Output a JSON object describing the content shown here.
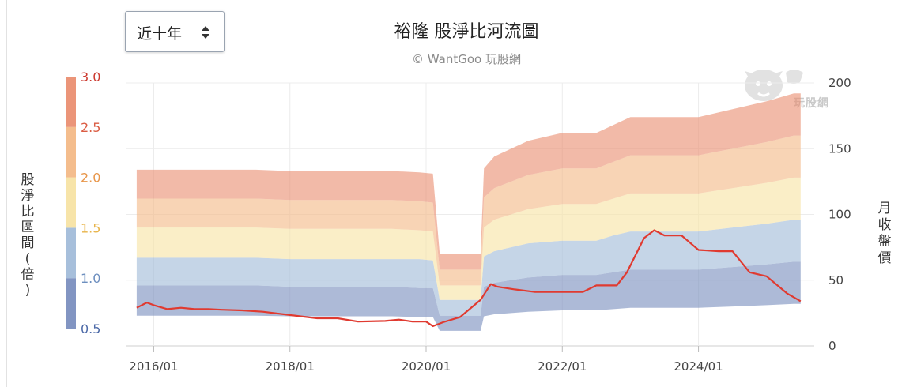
{
  "range_select": {
    "label": "近十年"
  },
  "title": "裕隆 股淨比河流圖",
  "credit": "© WantGoo 玩股網",
  "watermark": "玩股網",
  "y_left_title": "股淨比區間(倍)",
  "y_right_title": "月收盤價",
  "colors": {
    "band_0_5": "#7b8fbf",
    "band_1_0": "#a2bcd9",
    "band_1_5": "#f7e3a4",
    "band_2_0": "#f3b987",
    "band_2_5": "#ea8f72",
    "price_line": "#e03a30",
    "left_tick_text": "#cc3a30"
  },
  "chart_data": {
    "type": "area",
    "title": "裕隆 股淨比河流圖",
    "xlabel": "",
    "ylabel": "股淨比區間(倍)",
    "y2label": "月收盤價",
    "x_ticks": [
      "2016/01",
      "2018/01",
      "2020/01",
      "2022/01",
      "2024/01"
    ],
    "y_left_ticks": [
      "0.5",
      "1.0",
      "1.5",
      "2.0",
      "2.5",
      "3.0"
    ],
    "y_right_ticks": [
      "0",
      "50",
      "100",
      "150",
      "200"
    ],
    "ylim_right": [
      0,
      200
    ],
    "xlim": [
      2015.6,
      2025.7
    ],
    "x": [
      2015.75,
      2016.0,
      2016.5,
      2017.0,
      2017.5,
      2018.0,
      2018.5,
      2019.0,
      2019.5,
      2019.9,
      2020.1,
      2020.2,
      2020.5,
      2020.8,
      2020.85,
      2021.0,
      2021.5,
      2022.0,
      2022.3,
      2022.5,
      2022.75,
      2023.0,
      2023.5,
      2023.75,
      2024.0,
      2024.5,
      2025.0,
      2025.4,
      2025.5
    ],
    "series": [
      {
        "name": "0.5",
        "values": [
          23,
          23,
          23,
          23,
          23,
          22.5,
          22.5,
          22.5,
          22.5,
          22,
          22,
          11.5,
          11.5,
          11.5,
          22.5,
          24,
          26,
          27,
          27,
          27,
          28,
          29,
          29,
          29,
          29,
          30,
          31,
          32,
          32
        ]
      },
      {
        "name": "1.0",
        "values": [
          46,
          46,
          46,
          46,
          46,
          45,
          45,
          45,
          45,
          44,
          44,
          23,
          23,
          23,
          45,
          48,
          52,
          54,
          54,
          54,
          56,
          58,
          58,
          58,
          58,
          60,
          62,
          64,
          64
        ]
      },
      {
        "name": "1.5",
        "values": [
          67,
          67,
          67,
          67,
          67,
          66,
          66,
          66,
          66,
          66,
          65,
          35,
          35,
          35,
          68,
          72,
          78,
          80,
          80,
          80,
          84,
          87,
          87,
          87,
          87,
          90,
          93,
          96,
          96
        ]
      },
      {
        "name": "2.0",
        "values": [
          90,
          90,
          90,
          90,
          90,
          89,
          89,
          89,
          89,
          88,
          87,
          46,
          46,
          46,
          90,
          96,
          104,
          108,
          108,
          108,
          112,
          116,
          116,
          116,
          116,
          120,
          124,
          128,
          128
        ]
      },
      {
        "name": "2.5",
        "values": [
          112,
          112,
          112,
          112,
          112,
          111,
          111,
          111,
          111,
          110,
          109,
          58,
          58,
          58,
          113,
          120,
          130,
          135,
          135,
          135,
          140,
          145,
          145,
          145,
          145,
          150,
          155,
          160,
          160
        ]
      },
      {
        "name": "3.0",
        "values": [
          134,
          134,
          134,
          134,
          134,
          133,
          133,
          133,
          133,
          132,
          131,
          70,
          70,
          70,
          135,
          144,
          156,
          162,
          162,
          162,
          168,
          174,
          174,
          174,
          174,
          180,
          186,
          192,
          192
        ]
      }
    ],
    "price": {
      "name": "月收盤價",
      "x": [
        2015.75,
        2015.9,
        2016.0,
        2016.2,
        2016.4,
        2016.6,
        2016.8,
        2017.0,
        2017.3,
        2017.6,
        2018.0,
        2018.4,
        2018.7,
        2019.0,
        2019.4,
        2019.6,
        2019.8,
        2020.0,
        2020.1,
        2020.25,
        2020.5,
        2020.8,
        2020.95,
        2021.05,
        2021.3,
        2021.6,
        2021.9,
        2022.3,
        2022.5,
        2022.8,
        2022.95,
        2023.2,
        2023.35,
        2023.5,
        2023.75,
        2024.0,
        2024.3,
        2024.5,
        2024.75,
        2025.0,
        2025.3,
        2025.5
      ],
      "values": [
        29,
        33,
        31,
        28,
        29,
        28,
        28,
        27.5,
        27,
        26,
        23.5,
        21,
        21,
        18.5,
        19,
        20,
        18.5,
        18.5,
        15,
        18,
        22,
        35,
        47,
        45,
        43,
        41,
        41,
        41,
        46,
        46,
        56,
        82,
        88,
        84,
        84,
        73,
        72,
        72,
        56,
        53,
        40,
        34
      ]
    }
  }
}
